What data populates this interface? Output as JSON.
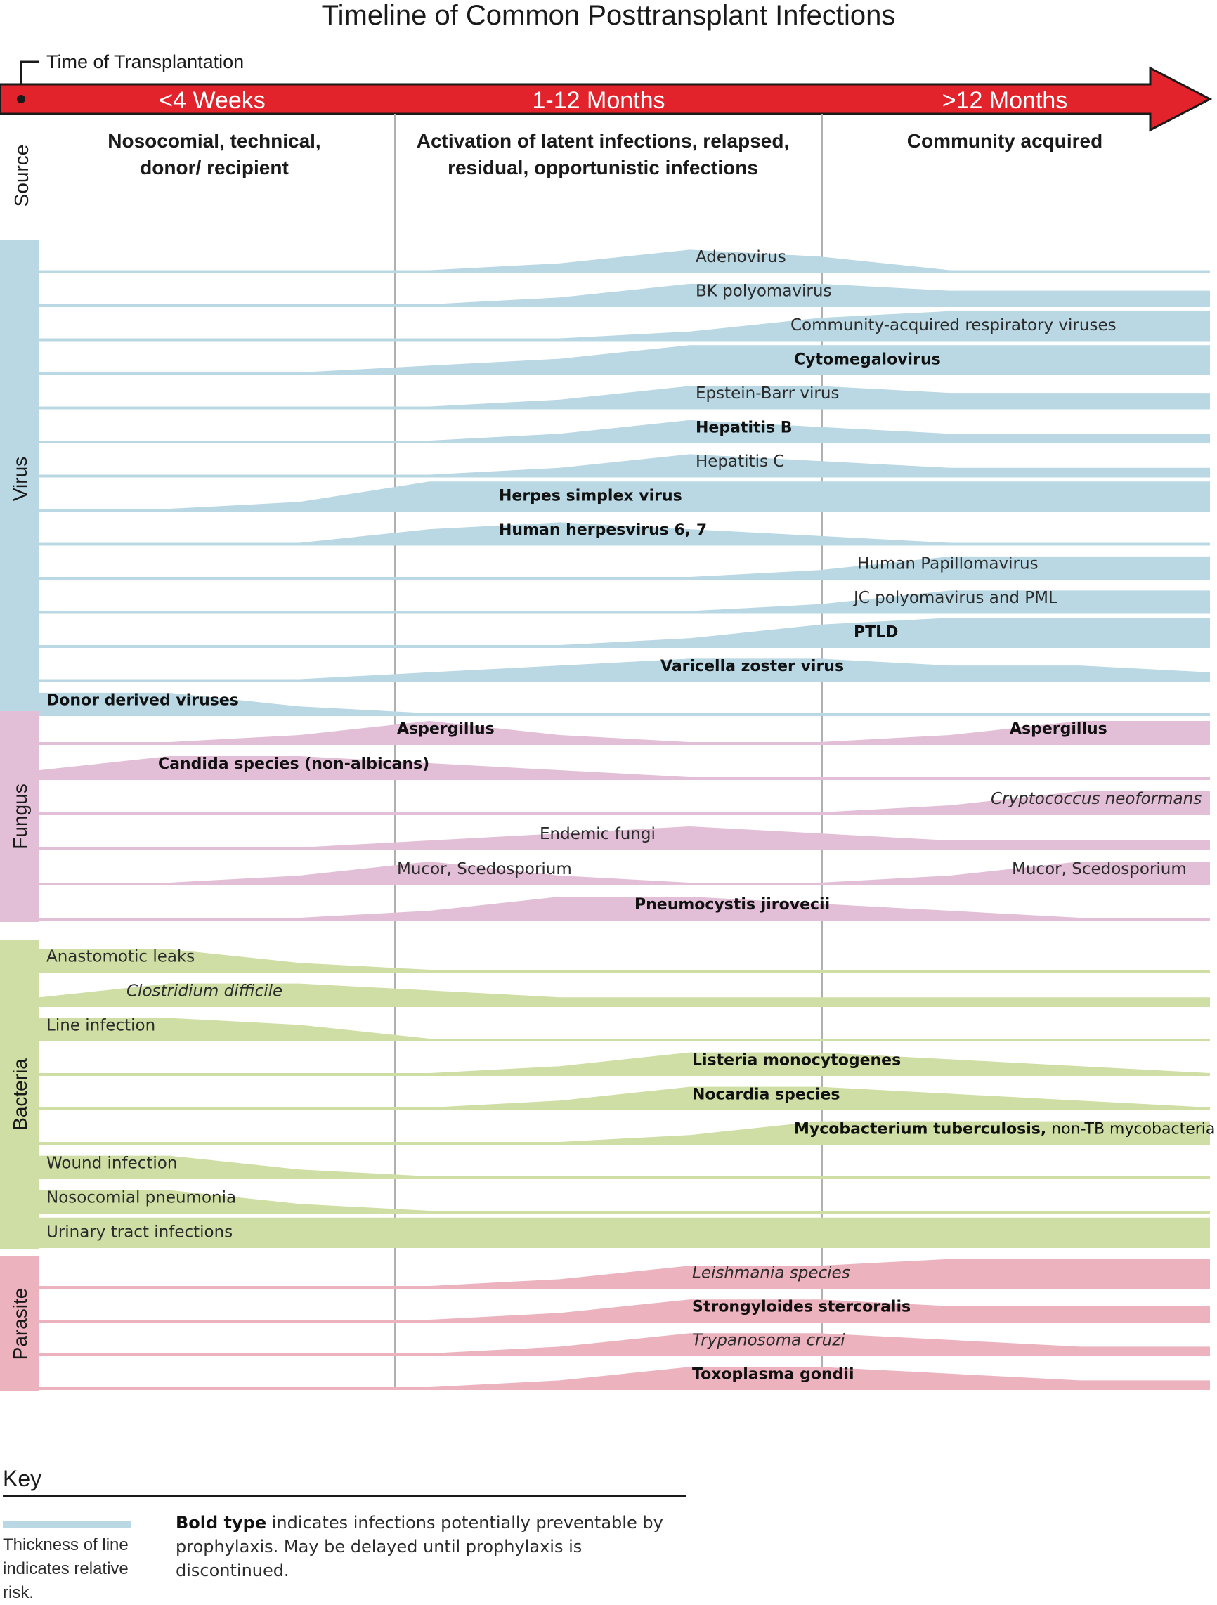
{
  "title": "Timeline of Common Posttransplant Infections",
  "time_of_transplantation": "Time of Transplantation",
  "periods": [
    {
      "label": "<4 Weeks",
      "source": [
        "Nosocomial, technical,",
        "donor/ recipient"
      ]
    },
    {
      "label": "1-12 Months",
      "source": [
        "Activation of latent infections, relapsed,",
        "residual, opportunistic infections"
      ]
    },
    {
      "label": ">12 Months",
      "source": [
        "Community acquired"
      ]
    }
  ],
  "source_label": "Source",
  "colors": {
    "arrow": "#e3232b",
    "virus": "#b9d8e3",
    "fungus": "#e2bfd6",
    "bacteria": "#cfdea4",
    "parasite": "#ecb3bf"
  },
  "categories": [
    {
      "name": "Virus",
      "color": "#b9d8e3",
      "rows": [
        {
          "label": "Adenovirus",
          "style": "normal",
          "profile": [
            0,
            0,
            0,
            0,
            1,
            3,
            2,
            0,
            0,
            0
          ]
        },
        {
          "label": "BK polyomavirus",
          "style": "normal",
          "profile": [
            0,
            0,
            0,
            0,
            1,
            3,
            3,
            2,
            2,
            2
          ]
        },
        {
          "label": "Community-acquired respiratory viruses",
          "style": "normal",
          "profile": [
            0,
            0,
            0,
            0,
            0,
            1,
            3,
            4,
            4,
            4
          ]
        },
        {
          "label": "Cytomegalovirus",
          "style": "bold",
          "profile": [
            0,
            0,
            0,
            1,
            2,
            4,
            4,
            4,
            4,
            4
          ]
        },
        {
          "label": "Epstein-Barr virus",
          "style": "normal",
          "profile": [
            0,
            0,
            0,
            0,
            1,
            3,
            3,
            2,
            2,
            2
          ]
        },
        {
          "label": "Hepatitis B",
          "style": "bold",
          "profile": [
            0,
            0,
            0,
            0,
            1,
            3,
            2,
            1,
            1,
            1
          ]
        },
        {
          "label": "Hepatitis C",
          "style": "normal",
          "profile": [
            0,
            0,
            0,
            0,
            1,
            3,
            2,
            1,
            1,
            1
          ]
        },
        {
          "label": "Herpes simplex virus",
          "style": "bold",
          "profile": [
            0,
            0,
            1,
            4,
            4,
            4,
            4,
            4,
            4,
            4
          ]
        },
        {
          "label": "Human herpesvirus 6, 7",
          "style": "bold",
          "profile": [
            0,
            0,
            0,
            2,
            3,
            2,
            1,
            0,
            0,
            0
          ]
        },
        {
          "label": "Human Papillomavirus",
          "style": "normal",
          "profile": [
            0,
            0,
            0,
            0,
            0,
            0,
            1,
            3,
            3,
            3
          ]
        },
        {
          "label": "JC polyomavirus and PML",
          "style": "normal",
          "profile": [
            0,
            0,
            0,
            0,
            0,
            0,
            1,
            3,
            3,
            3
          ]
        },
        {
          "label": "PTLD",
          "style": "bold",
          "profile": [
            0,
            0,
            0,
            0,
            0,
            1,
            3,
            4,
            4,
            4
          ]
        },
        {
          "label": "Varicella zoster virus",
          "style": "bold",
          "profile": [
            0,
            0,
            0,
            1,
            2,
            3,
            3,
            2,
            2,
            1
          ]
        },
        {
          "label": "Donor derived viruses",
          "style": "bold",
          "profile": [
            3,
            3,
            1,
            0,
            0,
            0,
            0,
            0,
            0,
            0
          ]
        }
      ]
    },
    {
      "name": "Fungus",
      "color": "#e2bfd6",
      "rows": [
        {
          "label": "Aspergillus",
          "label2": "Aspergillus",
          "style": "bold",
          "profile": [
            0,
            0,
            1,
            3,
            1,
            0,
            0,
            1,
            3,
            3
          ]
        },
        {
          "label": "Candida species (non-albicans)",
          "style": "bold",
          "profile": [
            1,
            3,
            3,
            2,
            1,
            0,
            0,
            0,
            0,
            0
          ]
        },
        {
          "label": "Cryptococcus neoformans",
          "style": "italic",
          "profile": [
            0,
            0,
            0,
            0,
            0,
            0,
            0,
            1,
            3,
            3
          ]
        },
        {
          "label": "Endemic fungi",
          "style": "normal",
          "profile": [
            0,
            0,
            0,
            1,
            2,
            3,
            2,
            1,
            1,
            1
          ]
        },
        {
          "label": "Mucor, Scedosporium",
          "label2": "Mucor, Scedosporium",
          "style": "normal",
          "profile": [
            0,
            0,
            1,
            3,
            1,
            0,
            0,
            1,
            3,
            3
          ]
        },
        {
          "label": "Pneumocystis jirovecii",
          "style": "bold",
          "profile": [
            0,
            0,
            0,
            1,
            3,
            3,
            2,
            1,
            0,
            0
          ]
        }
      ]
    },
    {
      "name": "Bacteria",
      "color": "#cfdea4",
      "rows": [
        {
          "label": "Anastomotic leaks",
          "style": "normal",
          "profile": [
            3,
            3,
            1,
            0,
            0,
            0,
            0,
            0,
            0,
            0
          ]
        },
        {
          "label": "Clostridium difficile",
          "style": "italic",
          "profile": [
            1,
            3,
            3,
            2,
            1,
            1,
            1,
            1,
            1,
            1
          ]
        },
        {
          "label": "Line infection",
          "style": "normal",
          "profile": [
            3,
            3,
            2,
            0,
            0,
            0,
            0,
            0,
            0,
            0
          ]
        },
        {
          "label": "Listeria monocytogenes",
          "style": "bold",
          "profile": [
            0,
            0,
            0,
            0,
            1,
            3,
            3,
            2,
            1,
            0
          ]
        },
        {
          "label": "Nocardia species",
          "style": "bold",
          "profile": [
            0,
            0,
            0,
            0,
            1,
            3,
            3,
            2,
            1,
            0
          ]
        },
        {
          "label": "Mycobacterium tuberculosis,",
          "label_suffix": " non-TB mycobacteria",
          "style": "bold",
          "profile": [
            0,
            0,
            0,
            0,
            0,
            1,
            3,
            3,
            3,
            3
          ]
        },
        {
          "label": "Wound infection",
          "style": "normal",
          "profile": [
            3,
            3,
            1,
            0,
            0,
            0,
            0,
            0,
            0,
            0
          ]
        },
        {
          "label": "Nosocomial pneumonia",
          "style": "normal",
          "profile": [
            3,
            3,
            1,
            0,
            0,
            0,
            0,
            0,
            0,
            0
          ]
        },
        {
          "label": "Urinary tract infections",
          "style": "normal",
          "profile": [
            4,
            4,
            4,
            4,
            4,
            4,
            4,
            4,
            4,
            4
          ]
        }
      ]
    },
    {
      "name": "Parasite",
      "color": "#ecb3bf",
      "rows": [
        {
          "label": "Leishmania species",
          "style": "italic",
          "label_suffix": " species",
          "profile": [
            0,
            0,
            0,
            0,
            1,
            3,
            3,
            4,
            4,
            4
          ]
        },
        {
          "label": "Strongyloides stercoralis",
          "style": "bold",
          "profile": [
            0,
            0,
            0,
            0,
            1,
            3,
            3,
            2,
            2,
            2
          ]
        },
        {
          "label": "Trypanosoma cruzi",
          "style": "italic",
          "profile": [
            0,
            0,
            0,
            0,
            1,
            3,
            3,
            2,
            1,
            1
          ]
        },
        {
          "label": "Toxoplasma gondii",
          "style": "bold",
          "profile": [
            0,
            0,
            0,
            0,
            1,
            3,
            3,
            2,
            1,
            1
          ]
        }
      ]
    }
  ],
  "key": {
    "title": "Key",
    "line_text": "Thickness of line indicates relative risk.",
    "bold_lead": "Bold type",
    "bold_text": " indicates infections potentially preventable by prophylaxis. May be delayed until prophylaxis is discontinued."
  }
}
